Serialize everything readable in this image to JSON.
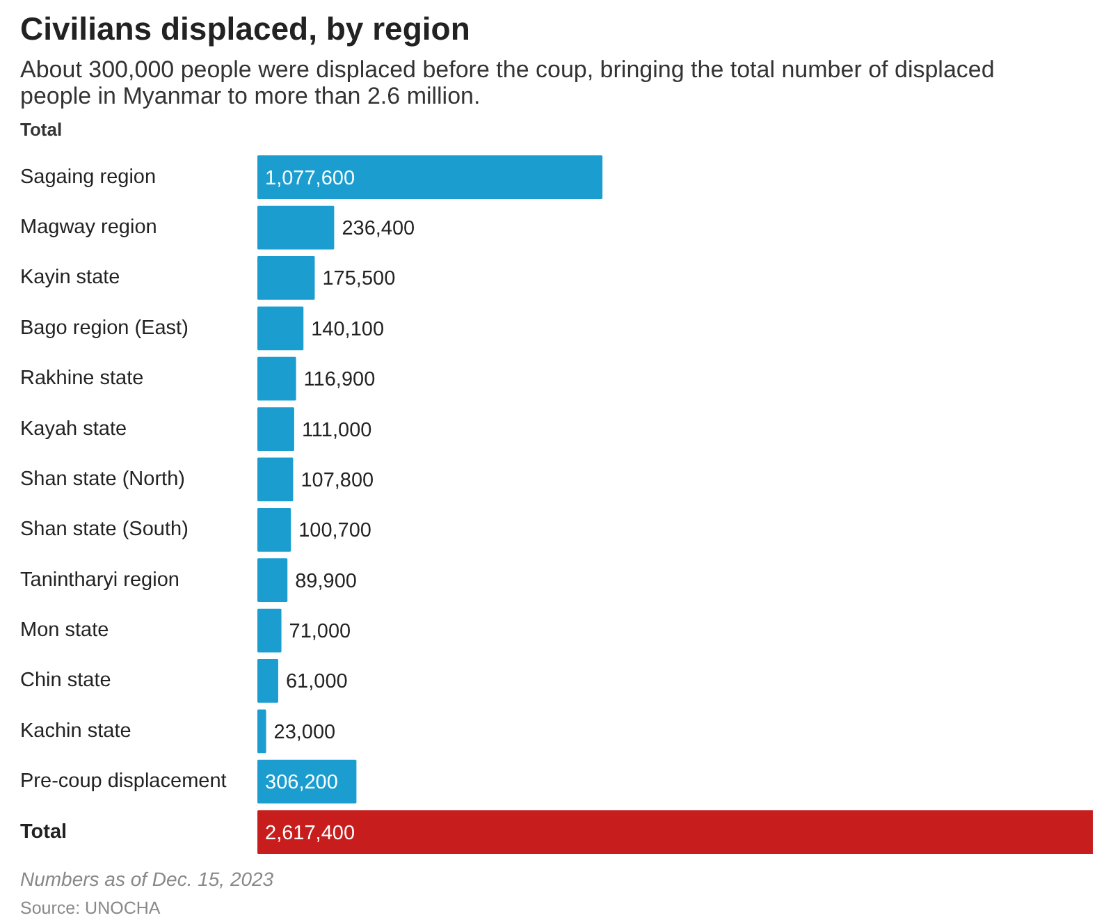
{
  "chart_data": {
    "type": "bar",
    "orientation": "horizontal",
    "title": "Civilians displaced, by region",
    "subtitle": "About 300,000 people were displaced before the coup, bringing the total number of displaced people in Myanmar to more than 2.6 million.",
    "categories": [
      "Sagaing region",
      "Magway region",
      "Kayin state",
      "Bago region (East)",
      "Rakhine state",
      "Kayah state",
      "Shan state (North)",
      "Shan state (South)",
      "Tanintharyi region",
      "Mon state",
      "Chin state",
      "Kachin state",
      "Pre-coup displacement",
      "Total"
    ],
    "values": [
      1077600,
      236400,
      175500,
      140100,
      116900,
      111000,
      107800,
      100700,
      89900,
      71000,
      61000,
      23000,
      306200,
      2617400
    ],
    "colors": [
      "#1b9dd0",
      "#1b9dd0",
      "#1b9dd0",
      "#1b9dd0",
      "#1b9dd0",
      "#1b9dd0",
      "#1b9dd0",
      "#1b9dd0",
      "#1b9dd0",
      "#1b9dd0",
      "#1b9dd0",
      "#1b9dd0",
      "#1b9dd0",
      "#c71e1d"
    ],
    "value_labels": [
      "1,077,600",
      "236,400",
      "175,500",
      "140,100",
      "116,900",
      "111,000",
      "107,800",
      "100,700",
      "89,900",
      "71,000",
      "61,000",
      "23,000",
      "306,200",
      "2,617,400"
    ],
    "legend_title": "Total",
    "grid": false,
    "annotations": [
      "Numbers as of Dec. 15, 2023",
      "Source: UNOCHA"
    ]
  }
}
